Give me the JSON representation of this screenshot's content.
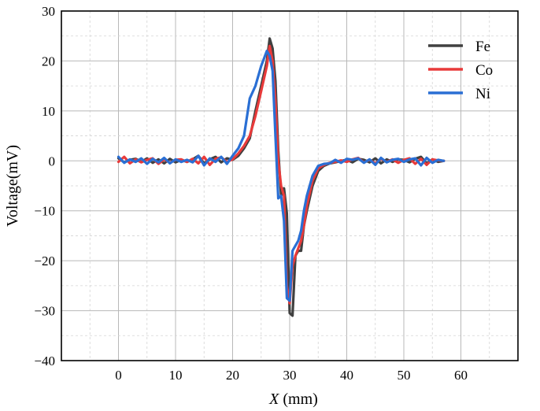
{
  "chart_data": {
    "type": "line",
    "title": "",
    "xlabel_var": "X",
    "xlabel_unit": " (mm)",
    "ylabel": "Voltage(mV)",
    "xlim": [
      -10,
      70
    ],
    "ylim": [
      -40,
      30
    ],
    "xticks": [
      0,
      10,
      20,
      30,
      40,
      50,
      60
    ],
    "yticks": [
      -40,
      -30,
      -20,
      -10,
      0,
      10,
      20,
      30
    ],
    "grid": true,
    "legend": "top-right",
    "series": [
      {
        "name": "Fe",
        "color": "#404040",
        "x": [
          0,
          1,
          2,
          3,
          4,
          5,
          6,
          7,
          8,
          9,
          10,
          11,
          12,
          13,
          14,
          15,
          16,
          17,
          18,
          19,
          20,
          21,
          22,
          23,
          24,
          25,
          26,
          26.5,
          27,
          27.5,
          28,
          28.5,
          29,
          29.5,
          30,
          30.5,
          31,
          31.5,
          32,
          32.5,
          33,
          34,
          35,
          36,
          37,
          38,
          39,
          40,
          41,
          42,
          43,
          44,
          45,
          46,
          47,
          48,
          49,
          50,
          51,
          52,
          53,
          54,
          55,
          56,
          57
        ],
        "y": [
          0.5,
          -0.3,
          0.2,
          0.4,
          -0.2,
          0.5,
          -0.4,
          0.3,
          -0.5,
          0.4,
          -0.3,
          0.2,
          -0.2,
          0.3,
          1.0,
          -0.5,
          0.3,
          0.8,
          -0.3,
          0.5,
          0.2,
          1.0,
          2.5,
          4.5,
          10,
          15,
          20,
          24.5,
          22.5,
          16,
          2,
          -7,
          -5.5,
          -10.5,
          -30.5,
          -31,
          -19,
          -18,
          -18,
          -13,
          -10,
          -5,
          -2,
          -1,
          -0.5,
          -0.3,
          0,
          0.2,
          -0.3,
          0.4,
          0.2,
          -0.3,
          0.5,
          -0.5,
          0.3,
          -0.2,
          0.3,
          0.2,
          -0.3,
          0.4,
          0.8,
          -0.5,
          0.3,
          -0.2,
          0.0
        ]
      },
      {
        "name": "Co",
        "color": "#e83a3a",
        "x": [
          0,
          1,
          2,
          3,
          4,
          5,
          6,
          7,
          8,
          9,
          10,
          11,
          12,
          13,
          14,
          15,
          16,
          17,
          18,
          19,
          20,
          21,
          22,
          23,
          24,
          25,
          26,
          26.5,
          27,
          27.5,
          28,
          28.5,
          29,
          29.5,
          30,
          30.5,
          31,
          31.5,
          32,
          32.5,
          33,
          34,
          35,
          36,
          37,
          38,
          39,
          40,
          41,
          42,
          43,
          44,
          45,
          46,
          47,
          48,
          49,
          50,
          51,
          52,
          53,
          54,
          55,
          56,
          57
        ],
        "y": [
          -0.2,
          0.8,
          -0.5,
          0.3,
          -0.3,
          0.2,
          0.5,
          -0.6,
          0.3,
          -0.4,
          0.2,
          0.3,
          -0.2,
          0.4,
          -0.5,
          0.8,
          -0.8,
          0.4,
          0.7,
          -0.2,
          0.3,
          1.5,
          3,
          5,
          9,
          14,
          19,
          23,
          20,
          12,
          0,
          -5,
          -7,
          -25,
          -28.5,
          -21,
          -19,
          -17.5,
          -16,
          -13,
          -9,
          -4,
          -1.5,
          -0.8,
          -0.4,
          -0.2,
          0.1,
          -0.2,
          0.3,
          0.6,
          -0.3,
          0.2,
          -0.5,
          0.4,
          -0.2,
          0.3,
          -0.4,
          0.2,
          0.5,
          -0.6,
          0.4,
          -0.8,
          0.3,
          0.1,
          0.0
        ]
      },
      {
        "name": "Ni",
        "color": "#2a6fd4",
        "x": [
          0,
          1,
          2,
          3,
          4,
          5,
          6,
          7,
          8,
          9,
          10,
          11,
          12,
          13,
          14,
          15,
          16,
          17,
          18,
          19,
          20,
          21,
          22,
          23,
          24,
          25,
          26,
          26.5,
          27,
          27.5,
          28,
          28.5,
          29,
          29.5,
          30,
          30.5,
          31,
          31.5,
          32,
          32.5,
          33,
          34,
          35,
          36,
          37,
          38,
          39,
          40,
          41,
          42,
          43,
          44,
          45,
          46,
          47,
          48,
          49,
          50,
          51,
          52,
          53,
          54,
          55,
          56,
          57
        ],
        "y": [
          0.8,
          -0.4,
          0.3,
          -0.2,
          0.5,
          -0.6,
          0.4,
          -0.3,
          0.6,
          -0.5,
          0.3,
          -0.2,
          0.2,
          -0.3,
          1.0,
          -0.9,
          0.5,
          -0.2,
          0.8,
          -0.6,
          1.0,
          2.5,
          5,
          12.5,
          15,
          19,
          22,
          21,
          18,
          5,
          -7.5,
          -7,
          -12,
          -27.5,
          -28,
          -18,
          -17,
          -16,
          -14,
          -10,
          -7,
          -3,
          -1,
          -0.6,
          -0.5,
          0.2,
          -0.4,
          0.4,
          0.2,
          0.5,
          -0.4,
          0.3,
          -0.8,
          0.6,
          -0.3,
          0.2,
          0.4,
          -0.2,
          0.3,
          0.5,
          -0.9,
          0.6,
          -0.4,
          0.2,
          0.0
        ]
      }
    ]
  }
}
